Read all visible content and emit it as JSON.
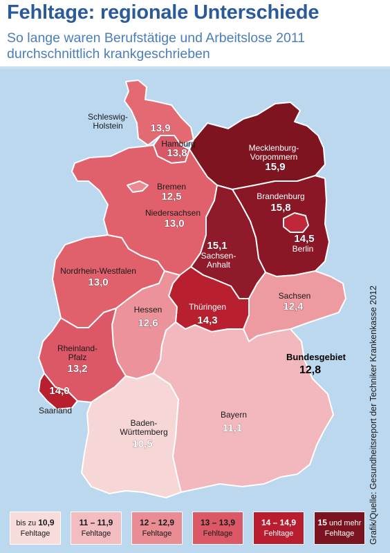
{
  "title": "Fehltage: regionale Unterschiede",
  "subtitle_line1": "So lange waren Berufstätige und Arbeitslose 2011",
  "subtitle_line2": "durchschnittlich krankgeschrieben",
  "credit": "Grafik/Quelle: Gesundheitsreport der Techniker Krankenkasse 2012",
  "national": {
    "label": "Bundesgebiet",
    "value": "12,8"
  },
  "states": [
    {
      "key": "sh",
      "name": "Schleswig-\nHolstein",
      "value": "13,9",
      "color": "#e36a73"
    },
    {
      "key": "hh",
      "name": "Hamburg",
      "value": "13,8",
      "color": "#d75866"
    },
    {
      "key": "mv",
      "name": "Mecklenburg-\nVorpommern",
      "value": "15,9",
      "color": "#7e1420"
    },
    {
      "key": "hb",
      "name": "Bremen",
      "value": "12,5",
      "color": "#ea8a92"
    },
    {
      "key": "ni",
      "name": "Niedersachsen",
      "value": "13,0",
      "color": "#e0606c"
    },
    {
      "key": "bb",
      "name": "Brandenburg",
      "value": "15,8",
      "color": "#8a1626"
    },
    {
      "key": "be",
      "name": "Berlin",
      "value": "14,5",
      "color": "#c0283a"
    },
    {
      "key": "st",
      "name": "Sachsen-\nAnhalt",
      "value": "15,1",
      "color": "#8f1a2a"
    },
    {
      "key": "nw",
      "name": "Nordrhein-Westfalen",
      "value": "13,0",
      "color": "#e0606c"
    },
    {
      "key": "sn",
      "name": "Sachsen",
      "value": "12,4",
      "color": "#ee9aa1"
    },
    {
      "key": "th",
      "name": "Thüringen",
      "value": "14,3",
      "color": "#b8202f"
    },
    {
      "key": "he",
      "name": "Hessen",
      "value": "12,6",
      "color": "#ec929a"
    },
    {
      "key": "rp",
      "name": "Rheinland-\nPfalz",
      "value": "13,2",
      "color": "#dc5866"
    },
    {
      "key": "sl",
      "name": "Saarland",
      "value": "14,0",
      "color": "#b8202f"
    },
    {
      "key": "bw",
      "name": "Baden-\nWürttemberg",
      "value": "10,5",
      "color": "#f7d6d6"
    },
    {
      "key": "by",
      "name": "Bayern",
      "value": "11,1",
      "color": "#f2b8bd"
    }
  ],
  "legend": [
    {
      "pre": "bis zu ",
      "bold": "10,9",
      "post": "",
      "line2": "Fehltage",
      "color": "#f7dcdc",
      "text": "#1a1a1a"
    },
    {
      "pre": "",
      "bold": "11 – 11,9",
      "post": "",
      "line2": "Fehltage",
      "color": "#f2bcc0",
      "text": "#1a1a1a"
    },
    {
      "pre": "",
      "bold": "12 – 12,9",
      "post": "",
      "line2": "Fehltage",
      "color": "#ea8c94",
      "text": "#1a1a1a"
    },
    {
      "pre": "",
      "bold": "13 – 13,9",
      "post": "",
      "line2": "Fehltage",
      "color": "#dd5866",
      "text": "#1a1a1a"
    },
    {
      "pre": "",
      "bold": "14 – 14,9",
      "post": "",
      "line2": "Fehltage",
      "color": "#b91d30",
      "text": "#ffffff"
    },
    {
      "pre": "",
      "bold": "15",
      "post": " und mehr",
      "line2": "Fehltage",
      "color": "#7c1320",
      "text": "#ffffff"
    }
  ]
}
